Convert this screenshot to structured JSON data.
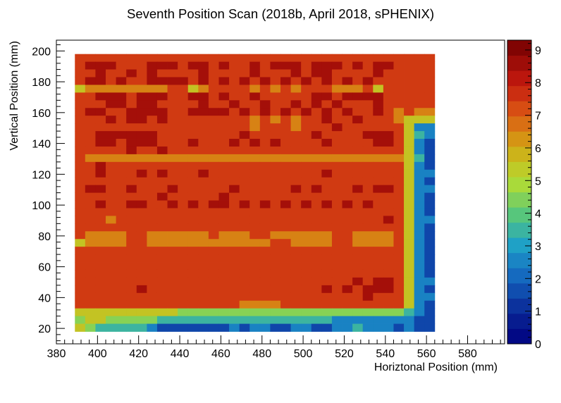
{
  "chart_data": {
    "type": "heatmap",
    "title": "Seventh Position Scan (2018b, April 2018, sPHENIX)",
    "xlabel": "Horiztonal Position (mm)",
    "ylabel": "Vertical Position (mm)",
    "xlim": [
      380,
      598
    ],
    "ylim": [
      10,
      207
    ],
    "x_ticks": [
      "380",
      "400",
      "420",
      "440",
      "460",
      "480",
      "500",
      "520",
      "540",
      "560",
      "580"
    ],
    "y_ticks": [
      "20",
      "40",
      "60",
      "80",
      "100",
      "120",
      "140",
      "160",
      "180",
      "200"
    ],
    "z_ticks": [
      "0",
      "1",
      "2",
      "3",
      "4",
      "5",
      "6",
      "7",
      "8",
      "9"
    ],
    "zlim": [
      0,
      9.3
    ],
    "colorbar": "right",
    "grid": false,
    "x_bins": {
      "start": 389,
      "width": 5,
      "count": 35
    },
    "y_bins": {
      "start": 18,
      "width": 5,
      "count": 36
    },
    "rows_top_to_bottom": [
      "77777777777777777777777777777777777",
      "78887778887887877878887888787887777",
      "77877878777787777877787887777877777",
      "78878778888787878787878787878777777",
      "56666666677567777676767776667577777",
      "77888788877887877877777887888877777",
      "77788788777787787787787878777877777",
      "78877888877888878787878787877876766",
      "77787887877777777676767787787776555",
      "77777777777777777677767778777777522",
      "77888888777777778777777877778887532",
      "77887888777877787878777787777887521",
      "77777877877777777777777777777777521",
      "76666666666666666666666666666666531",
      "77877777777777777777777777777777521",
      "77877787877787777777777787777777522",
      "77777777777777777777777777777777521",
      "78877877787777787777787877787887522",
      "77777777877777877777777777777777521",
      "77877887787878878787878787878777521",
      "77777777777777777777777777777777521",
      "77767777777777777777777777777787522",
      "77777777777777777777777777777777521",
      "76666776666667666776666667766667521",
      "56666776666666666667766667766667521",
      "77777777777777777777777777777777521",
      "77777777777777777777777777777777521",
      "77777777777777777777777777777777521",
      "77777777777777777777777777777777521",
      "77777777777777777777777777787887522",
      "77777787777777777777777787878887521",
      "77777777777777777777777777778777522",
      "77777777777777776666777777777777521",
      "55555555554444444444444444444444321",
      "45544444333333333333333332222222211",
      "54333332111111121221122112232221211"
    ]
  }
}
